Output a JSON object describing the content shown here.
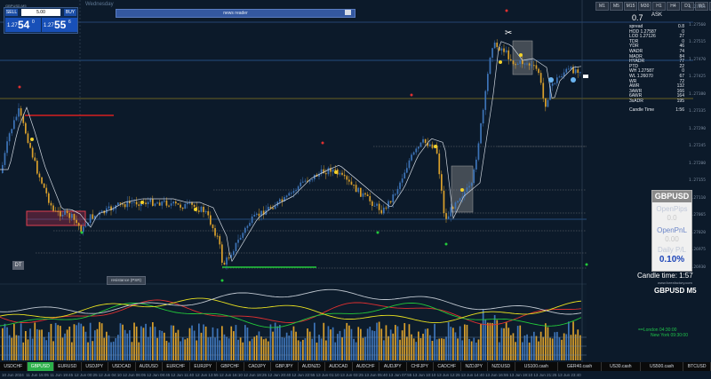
{
  "window": {
    "title": "GBPUSD,M5",
    "day": "Wednesday"
  },
  "trade_panel": {
    "sell_label": "SELL",
    "buy_label": "BUY",
    "lot": "5.00",
    "sell_price": {
      "prefix": "1.27",
      "big": "54",
      "sup": "0"
    },
    "buy_price": {
      "prefix": "1.27",
      "big": "55",
      "sup": "6"
    }
  },
  "news_bar": {
    "label": "news reader"
  },
  "timeframes": [
    "M1",
    "M5",
    "M15",
    "M30",
    "H1",
    "H4",
    "D1",
    "W1",
    "MN"
  ],
  "info_panel": {
    "spread_big": "0.7",
    "ask": "ASK",
    "rows": [
      {
        "k": "spread",
        "v": "0.8"
      },
      {
        "k": "HOD 1.27587",
        "v": "0"
      },
      {
        "k": "LOD 1.27126",
        "v": "27"
      },
      {
        "k": "TDR",
        "v": "0"
      },
      {
        "k": "YDR",
        "v": "46"
      },
      {
        "k": "WADR",
        "v": "74"
      },
      {
        "k": "MADR",
        "v": "84"
      },
      {
        "k": "HYADR",
        "v": "77"
      },
      {
        "k": "PTD",
        "v": "22"
      },
      {
        "k": "WH 1.27587",
        "v": "0"
      },
      {
        "k": "WL 1.26070",
        "v": "67"
      },
      {
        "k": "WR",
        "v": "72"
      },
      {
        "k": "AWR",
        "v": "132"
      },
      {
        "k": "3AWR",
        "v": "166"
      },
      {
        "k": "6AWR",
        "v": "164"
      },
      {
        "k": "3xADR",
        "v": "195"
      }
    ],
    "candle_time_row": {
      "k": "Candle Time",
      "v": "1:56"
    }
  },
  "price_ticks": [
    "1.27605",
    "1.27560",
    "1.27515",
    "1.27470",
    "1.27425",
    "1.27380",
    "1.27335",
    "1.27290",
    "1.27245",
    "1.27200",
    "1.27155",
    "1.27110",
    "1.27065",
    "1.27020",
    "1.26975",
    "1.26930"
  ],
  "symbol_panel": {
    "symbol": "GBPUSD",
    "open_pips_label": "OpenPips",
    "open_pips": "0.0",
    "open_pnl_label": "OpenPnL",
    "open_pnl": "0.00",
    "daily_pl_label": "Daily P/L",
    "daily_pl": "0.10%"
  },
  "candle_time": "Candle time: 1:57",
  "brand": "www.forexfactory.com",
  "indicator_title": "GBPUSD  M5",
  "sessions": {
    "london": "==London    04:30:00",
    "newyork": "New York  09:30:00"
  },
  "chart_label": "resistance (PSR)",
  "dt_badge": "DT",
  "tabs": [
    "USDCHF",
    "GBPUSD",
    "EURUSD",
    "USDJPY",
    "USDCAD",
    "AUDUSD",
    "EURCHF",
    "EURJPY",
    "GBPCHF",
    "CADJPY",
    "GBPJPY",
    "AUDNZD",
    "AUDCAD",
    "AUDCHF",
    "AUDJPY",
    "CHFJPY",
    "CADCHF",
    "NZDJPY",
    "NZDUSD",
    "US100.cash",
    "GER40.cash",
    "US30.cash",
    "US500.cash",
    "BTCUSD"
  ],
  "active_tab": "GBPUSD",
  "time_labels": [
    "10 Jun 2024",
    "11 Jun 15:05",
    "11 Jun 19:45",
    "12 Jun 00:25",
    "12 Jun 04:10",
    "12 Jun 06:05",
    "12 Jun 08:45",
    "12 Jun 11:40",
    "12 Jun 13:55",
    "12 Jun 16:10",
    "12 Jun 18:25",
    "12 Jun 20:40",
    "12 Jun 22:55",
    "13 Jun 01:10",
    "13 Jun 03:25",
    "13 Jun 05:40",
    "13 Jun 07:55",
    "13 Jun 10:10",
    "13 Jun 12:25",
    "13 Jun 14:40",
    "13 Jun 16:55",
    "13 Jun 19:10",
    "13 Jun 21:25",
    "13 Jun 23:40"
  ],
  "colors": {
    "bull": "#3d74b8",
    "bear": "#d9a02c",
    "ma": "#cfd6df",
    "red_line": "#d62020",
    "green_line": "#22c93a",
    "yellow_line": "#c8a51a"
  }
}
